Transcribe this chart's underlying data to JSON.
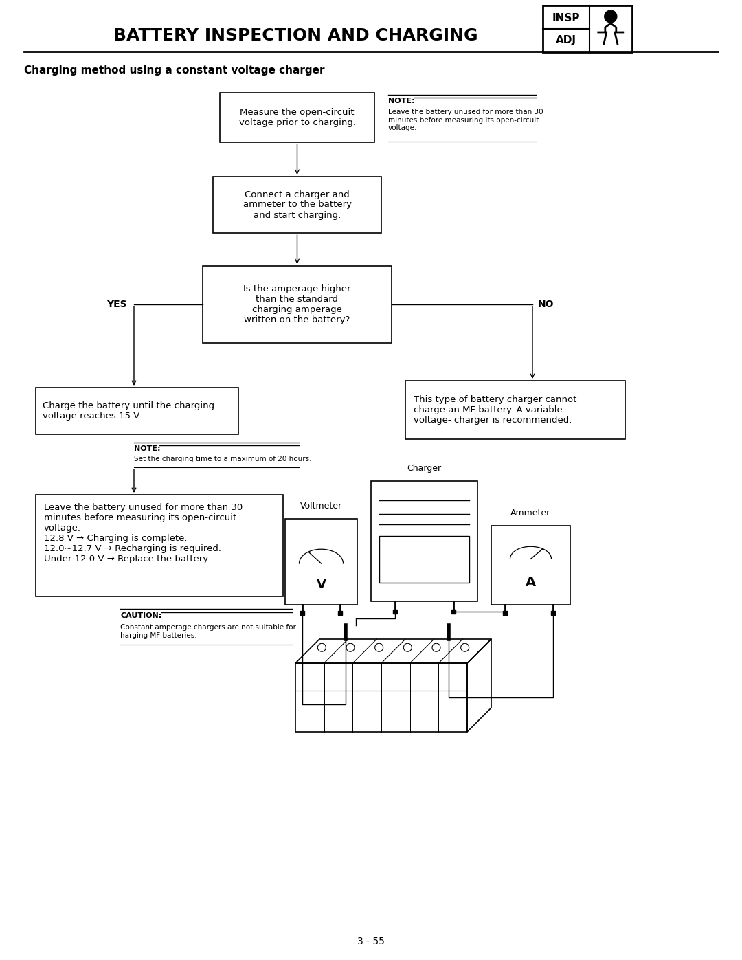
{
  "title": "BATTERY INSPECTION AND CHARGING",
  "subtitle": "Charging method using a constant voltage charger",
  "page_number": "3 - 55",
  "bg_color": "#ffffff"
}
